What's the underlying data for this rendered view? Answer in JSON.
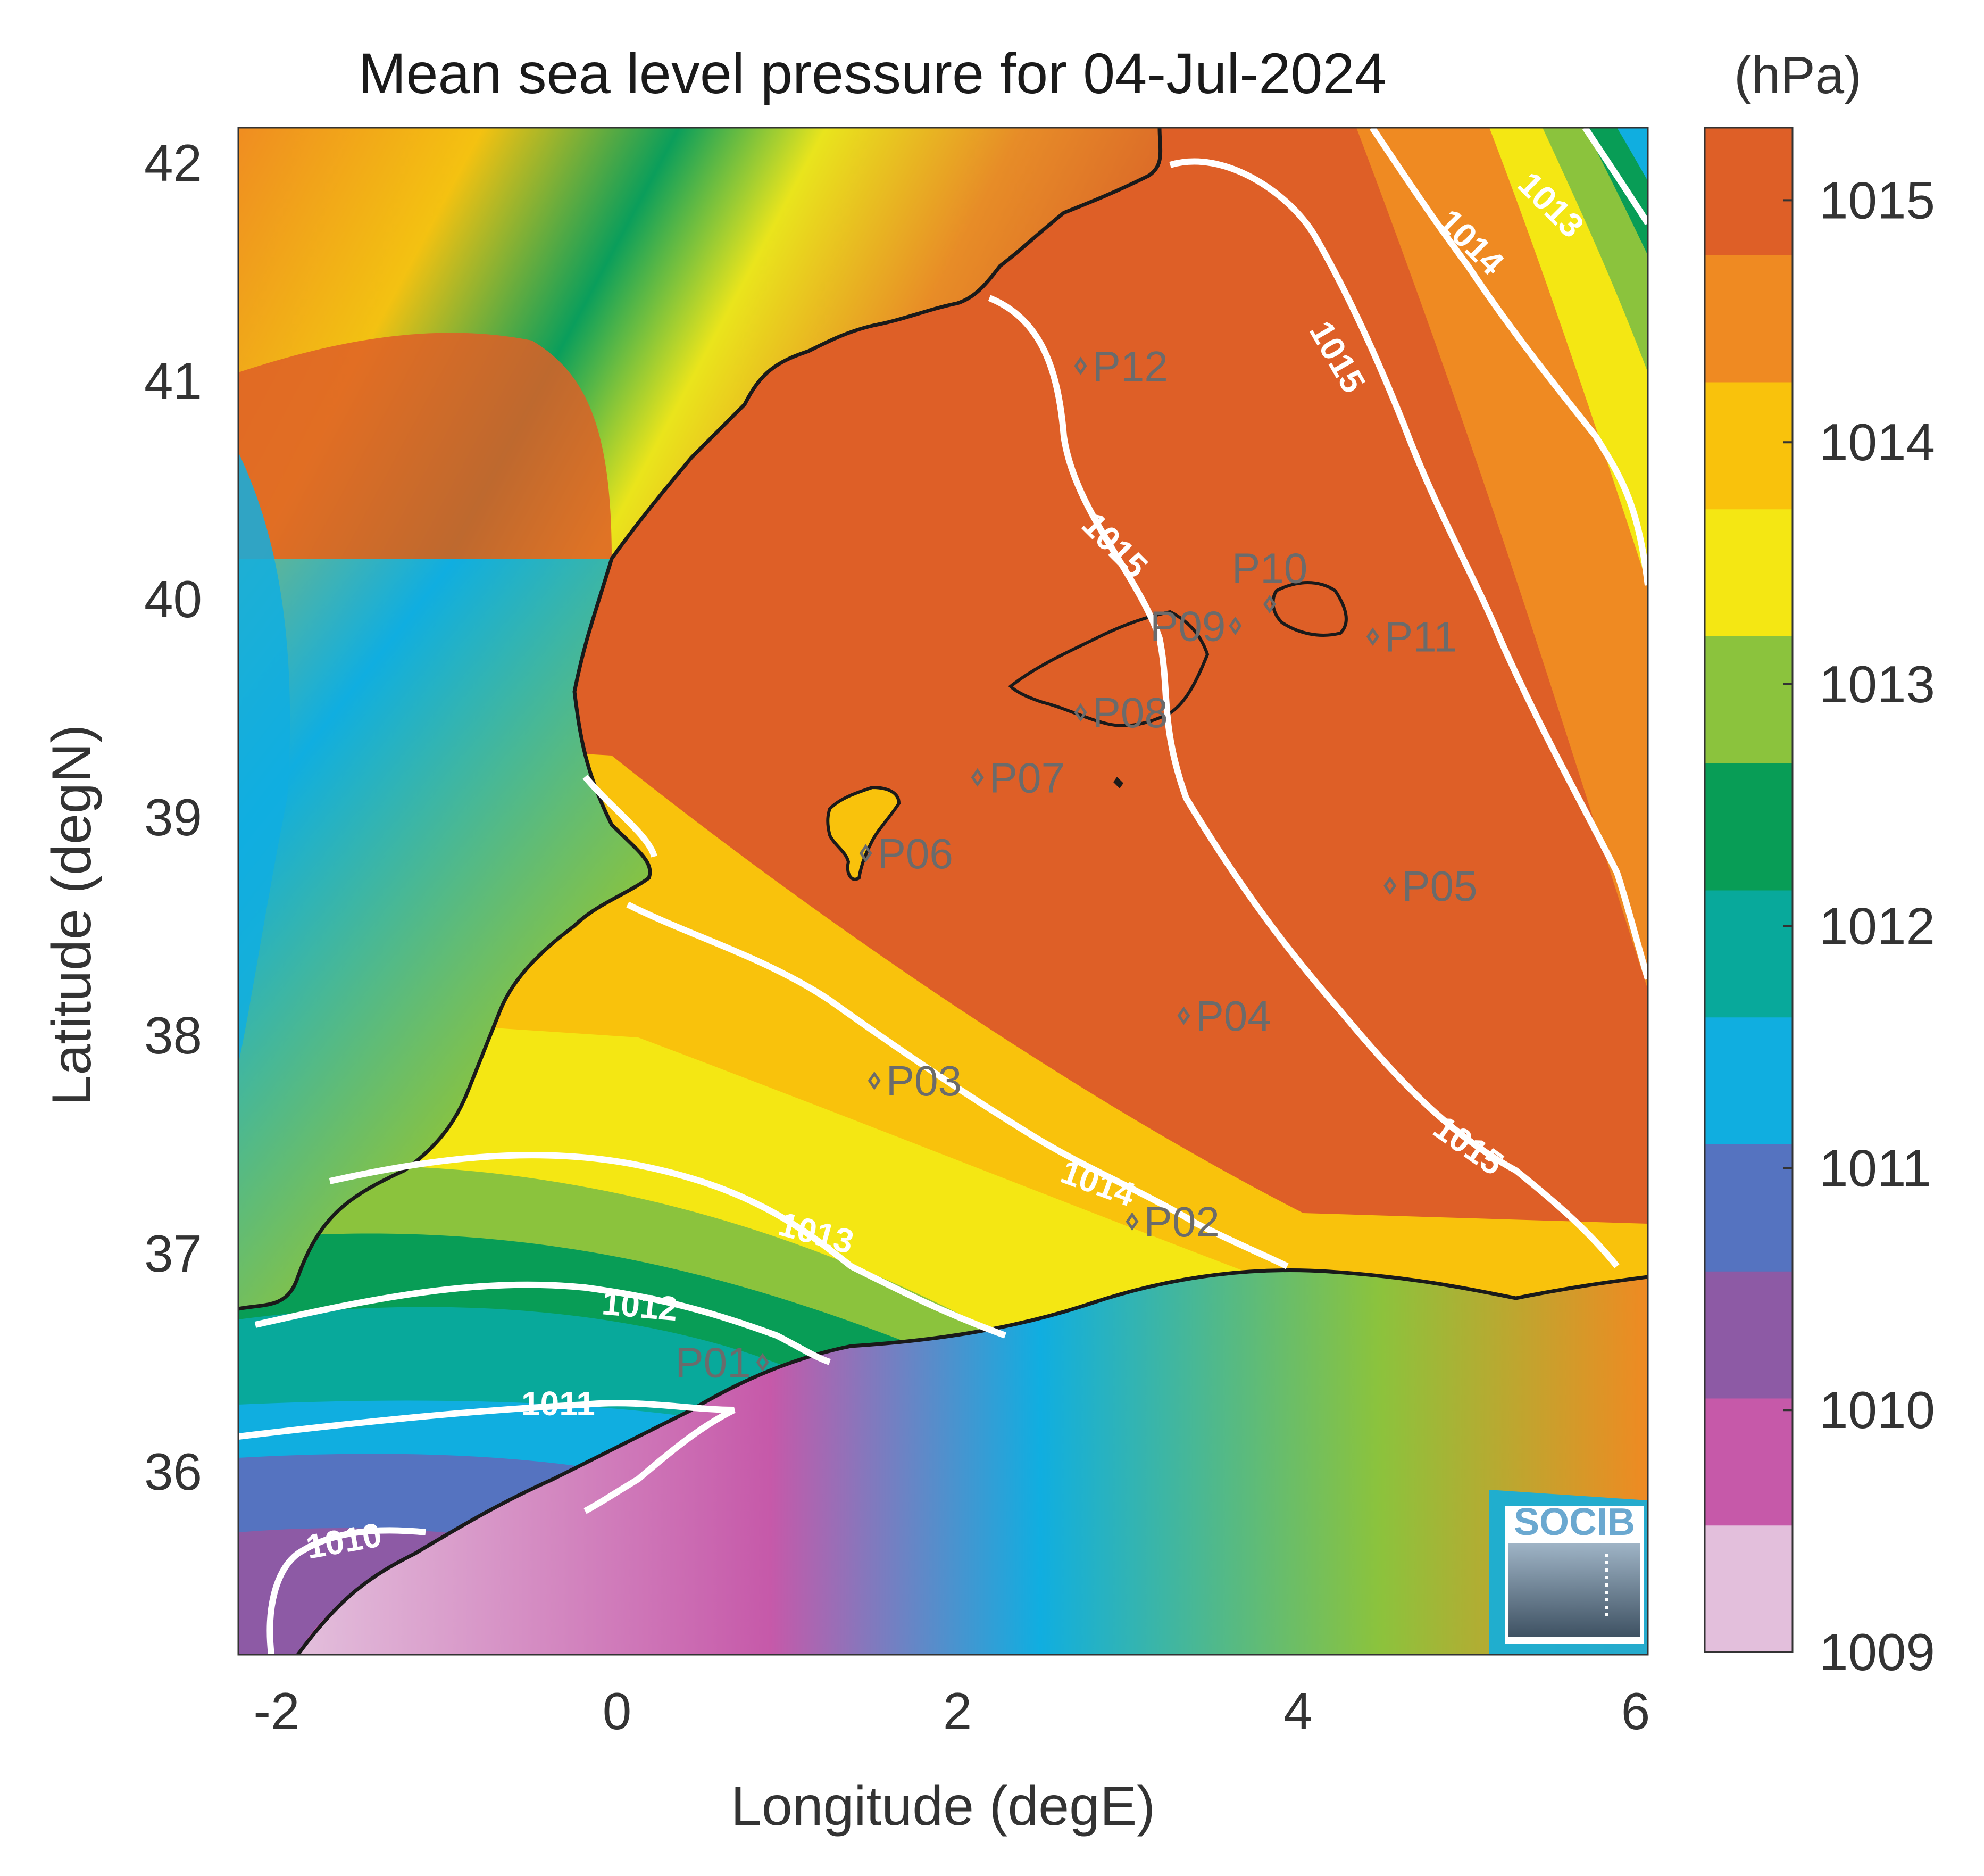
{
  "title": "Mean sea level pressure for 04-Jul-2024",
  "colorbar_unit": "(hPa)",
  "xlabel": "Longitude (degE)",
  "ylabel": "Latitude (degN)",
  "x_ticks": [
    "-2",
    "0",
    "2",
    "4",
    "6"
  ],
  "y_ticks": [
    "42",
    "41",
    "40",
    "39",
    "38",
    "37",
    "36"
  ],
  "colorbar_ticks": [
    "1015",
    "1014",
    "1013",
    "1012",
    "1011",
    "1010",
    "1009"
  ],
  "colorbar_colors": [
    "#e3bfdc",
    "#c659a9",
    "#8d5aa5",
    "#5573c0",
    "#10aee0",
    "#08a99b",
    "#089d56",
    "#8bc33d",
    "#f4e713",
    "#f9c20c",
    "#ef8a22",
    "#de5f27"
  ],
  "logo_text": "SOCIB",
  "chart_data": {
    "type": "heatmap",
    "title": "Mean sea level pressure for 04-Jul-2024",
    "xlabel": "Longitude (degE)",
    "ylabel": "Latitude (degN)",
    "xlim": [
      -2.2,
      6
    ],
    "ylim": [
      35.15,
      42.2
    ],
    "colorbar": {
      "label": "(hPa)",
      "range": [
        1009,
        1015.3
      ],
      "ticks": [
        1009,
        1010,
        1011,
        1012,
        1013,
        1014,
        1015
      ]
    },
    "contours": [
      {
        "level": 1010,
        "label": "1010"
      },
      {
        "level": 1011,
        "label": "1011"
      },
      {
        "level": 1012,
        "label": "1012"
      },
      {
        "level": 1013,
        "label": "1013"
      },
      {
        "level": 1014,
        "label": "1014"
      },
      {
        "level": 1015,
        "label": "1015"
      }
    ],
    "points": [
      {
        "name": "P01",
        "lon": 0.85,
        "lat": 36.5
      },
      {
        "name": "P02",
        "lon": 3.0,
        "lat": 37.15
      },
      {
        "name": "P03",
        "lon": 1.5,
        "lat": 37.8
      },
      {
        "name": "P04",
        "lon": 3.3,
        "lat": 38.1
      },
      {
        "name": "P05",
        "lon": 4.5,
        "lat": 38.7
      },
      {
        "name": "P06",
        "lon": 1.45,
        "lat": 38.85
      },
      {
        "name": "P07",
        "lon": 2.1,
        "lat": 39.2
      },
      {
        "name": "P08",
        "lon": 2.7,
        "lat": 39.5
      },
      {
        "name": "P09",
        "lon": 3.6,
        "lat": 39.9
      },
      {
        "name": "P10",
        "lon": 3.8,
        "lat": 40.0
      },
      {
        "name": "P11",
        "lon": 4.4,
        "lat": 39.85
      },
      {
        "name": "P12",
        "lon": 2.7,
        "lat": 41.1
      }
    ]
  }
}
